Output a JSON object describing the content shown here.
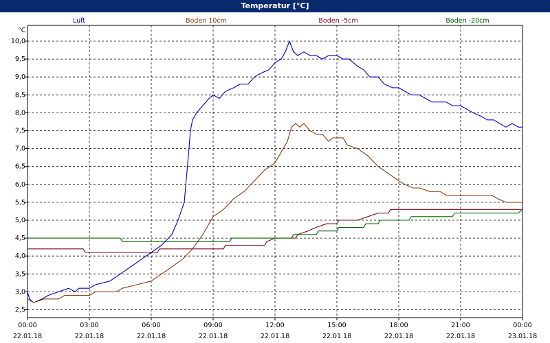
{
  "title": "Temperatur [°C]",
  "chart_data": {
    "type": "line",
    "title": "Temperatur [°C]",
    "ylabel": "°C",
    "ylim": [
      2.5,
      10.0
    ],
    "yticks": [
      "10,0",
      "9,5",
      "9,0",
      "8,5",
      "8,0",
      "7,5",
      "7,0",
      "6,5",
      "6,0",
      "5,5",
      "5,0",
      "4,5",
      "4,0",
      "3,5",
      "3,0",
      "2,5"
    ],
    "xlim": [
      0,
      24
    ],
    "xticks": [
      {
        "time": "00:00",
        "date": "22.01.18"
      },
      {
        "time": "03:00",
        "date": "22.01.18"
      },
      {
        "time": "06:00",
        "date": "22.01.18"
      },
      {
        "time": "09:00",
        "date": "22.01.18"
      },
      {
        "time": "12:00",
        "date": "22.01.18"
      },
      {
        "time": "15:00",
        "date": "22.01.18"
      },
      {
        "time": "18:00",
        "date": "22.01.18"
      },
      {
        "time": "21:00",
        "date": "22.01.18"
      },
      {
        "time": "00:00",
        "date": "23.01.18"
      }
    ],
    "grid": true,
    "legend": "top",
    "series": [
      {
        "name": "Luft",
        "color": "#0000cc",
        "points": [
          [
            0,
            3.0
          ],
          [
            0.1,
            2.8
          ],
          [
            0.3,
            2.7
          ],
          [
            0.7,
            2.8
          ],
          [
            1.0,
            2.9
          ],
          [
            1.5,
            3.0
          ],
          [
            2.0,
            3.1
          ],
          [
            2.3,
            3.0
          ],
          [
            2.5,
            3.1
          ],
          [
            3.0,
            3.1
          ],
          [
            3.3,
            3.2
          ],
          [
            4.0,
            3.3
          ],
          [
            4.5,
            3.5
          ],
          [
            5.0,
            3.7
          ],
          [
            5.5,
            3.9
          ],
          [
            6.0,
            4.1
          ],
          [
            6.5,
            4.3
          ],
          [
            7.0,
            4.6
          ],
          [
            7.3,
            5.0
          ],
          [
            7.6,
            5.5
          ],
          [
            7.8,
            6.8
          ],
          [
            7.9,
            7.5
          ],
          [
            8.0,
            7.8
          ],
          [
            8.2,
            8.0
          ],
          [
            8.5,
            8.2
          ],
          [
            8.8,
            8.4
          ],
          [
            9.0,
            8.5
          ],
          [
            9.3,
            8.4
          ],
          [
            9.6,
            8.6
          ],
          [
            10.0,
            8.7
          ],
          [
            10.3,
            8.8
          ],
          [
            10.7,
            8.8
          ],
          [
            11.0,
            9.0
          ],
          [
            11.3,
            9.1
          ],
          [
            11.7,
            9.2
          ],
          [
            12.0,
            9.4
          ],
          [
            12.3,
            9.5
          ],
          [
            12.5,
            9.7
          ],
          [
            12.7,
            10.0
          ],
          [
            12.9,
            9.7
          ],
          [
            13.1,
            9.6
          ],
          [
            13.4,
            9.7
          ],
          [
            13.7,
            9.6
          ],
          [
            14.0,
            9.6
          ],
          [
            14.3,
            9.5
          ],
          [
            14.6,
            9.6
          ],
          [
            15.0,
            9.6
          ],
          [
            15.3,
            9.5
          ],
          [
            15.6,
            9.5
          ],
          [
            16.0,
            9.3
          ],
          [
            16.3,
            9.2
          ],
          [
            16.6,
            9.0
          ],
          [
            17.0,
            9.0
          ],
          [
            17.3,
            8.8
          ],
          [
            17.7,
            8.7
          ],
          [
            18.0,
            8.7
          ],
          [
            18.3,
            8.6
          ],
          [
            18.6,
            8.5
          ],
          [
            19.0,
            8.5
          ],
          [
            19.3,
            8.4
          ],
          [
            19.6,
            8.3
          ],
          [
            20.0,
            8.3
          ],
          [
            20.3,
            8.3
          ],
          [
            20.6,
            8.2
          ],
          [
            21.0,
            8.2
          ],
          [
            21.3,
            8.1
          ],
          [
            21.6,
            8.0
          ],
          [
            22.0,
            7.9
          ],
          [
            22.3,
            7.8
          ],
          [
            22.6,
            7.8
          ],
          [
            22.9,
            7.7
          ],
          [
            23.2,
            7.6
          ],
          [
            23.5,
            7.7
          ],
          [
            23.8,
            7.6
          ],
          [
            24.0,
            7.6
          ]
        ]
      },
      {
        "name": "Boden 10cm",
        "color": "#8b3a0f",
        "points": [
          [
            0,
            2.8
          ],
          [
            0.3,
            2.7
          ],
          [
            0.8,
            2.8
          ],
          [
            1.5,
            2.8
          ],
          [
            1.8,
            2.9
          ],
          [
            3.0,
            2.9
          ],
          [
            3.3,
            3.0
          ],
          [
            4.3,
            3.0
          ],
          [
            4.6,
            3.1
          ],
          [
            5.3,
            3.2
          ],
          [
            6.0,
            3.3
          ],
          [
            6.5,
            3.5
          ],
          [
            7.0,
            3.7
          ],
          [
            7.5,
            3.9
          ],
          [
            8.0,
            4.2
          ],
          [
            8.5,
            4.6
          ],
          [
            8.8,
            4.9
          ],
          [
            9.0,
            5.1
          ],
          [
            9.5,
            5.3
          ],
          [
            10.0,
            5.6
          ],
          [
            10.5,
            5.8
          ],
          [
            11.0,
            6.1
          ],
          [
            11.5,
            6.4
          ],
          [
            12.0,
            6.6
          ],
          [
            12.3,
            6.9
          ],
          [
            12.6,
            7.2
          ],
          [
            12.8,
            7.6
          ],
          [
            13.0,
            7.7
          ],
          [
            13.2,
            7.6
          ],
          [
            13.4,
            7.7
          ],
          [
            13.7,
            7.5
          ],
          [
            14.0,
            7.4
          ],
          [
            14.3,
            7.4
          ],
          [
            14.6,
            7.2
          ],
          [
            14.8,
            7.3
          ],
          [
            15.3,
            7.3
          ],
          [
            15.5,
            7.1
          ],
          [
            16.0,
            7.0
          ],
          [
            16.5,
            6.8
          ],
          [
            17.0,
            6.5
          ],
          [
            17.5,
            6.3
          ],
          [
            18.0,
            6.1
          ],
          [
            18.3,
            6.0
          ],
          [
            18.7,
            5.9
          ],
          [
            19.0,
            5.9
          ],
          [
            19.5,
            5.8
          ],
          [
            20.0,
            5.8
          ],
          [
            20.3,
            5.7
          ],
          [
            22.5,
            5.7
          ],
          [
            22.8,
            5.6
          ],
          [
            23.2,
            5.5
          ],
          [
            24.0,
            5.5
          ]
        ]
      },
      {
        "name": "Boden -5cm",
        "color": "#7a0a1a",
        "points": [
          [
            0,
            4.2
          ],
          [
            2.7,
            4.2
          ],
          [
            2.8,
            4.1
          ],
          [
            6.3,
            4.1
          ],
          [
            6.4,
            4.2
          ],
          [
            9.5,
            4.2
          ],
          [
            9.6,
            4.3
          ],
          [
            11.5,
            4.3
          ],
          [
            11.6,
            4.4
          ],
          [
            12.0,
            4.5
          ],
          [
            13.0,
            4.5
          ],
          [
            13.1,
            4.6
          ],
          [
            13.6,
            4.7
          ],
          [
            14.0,
            4.8
          ],
          [
            14.5,
            4.9
          ],
          [
            15.0,
            4.9
          ],
          [
            15.1,
            5.0
          ],
          [
            16.0,
            5.0
          ],
          [
            16.5,
            5.1
          ],
          [
            17.0,
            5.2
          ],
          [
            17.5,
            5.2
          ],
          [
            17.6,
            5.3
          ],
          [
            23.8,
            5.3
          ],
          [
            24.0,
            5.3
          ]
        ]
      },
      {
        "name": "Boden -20cm",
        "color": "#006400",
        "points": [
          [
            0,
            4.5
          ],
          [
            4.5,
            4.5
          ],
          [
            4.6,
            4.4
          ],
          [
            9.8,
            4.4
          ],
          [
            9.9,
            4.5
          ],
          [
            12.8,
            4.5
          ],
          [
            12.9,
            4.6
          ],
          [
            14.0,
            4.6
          ],
          [
            14.1,
            4.7
          ],
          [
            15.0,
            4.7
          ],
          [
            15.1,
            4.8
          ],
          [
            16.3,
            4.8
          ],
          [
            16.4,
            4.9
          ],
          [
            17.0,
            4.9
          ],
          [
            17.1,
            5.0
          ],
          [
            18.5,
            5.0
          ],
          [
            18.6,
            5.1
          ],
          [
            20.6,
            5.1
          ],
          [
            20.7,
            5.2
          ],
          [
            23.8,
            5.2
          ],
          [
            24.0,
            5.3
          ]
        ]
      }
    ]
  }
}
